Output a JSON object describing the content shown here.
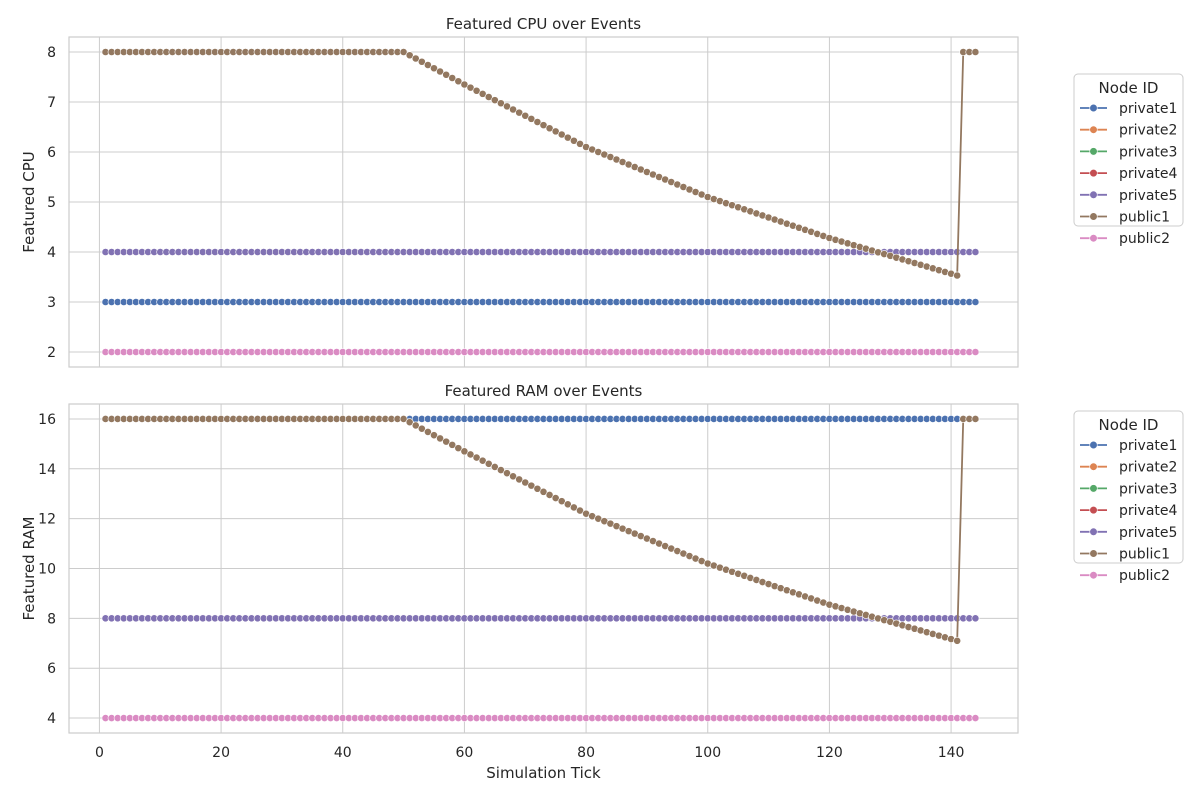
{
  "chart_data": [
    {
      "type": "line",
      "title": "Featured CPU over Events",
      "xlabel": "",
      "ylabel": "Featured CPU",
      "xlim": [
        -5,
        151
      ],
      "ylim": [
        1.7,
        8.3
      ],
      "xticks": [
        0,
        20,
        40,
        60,
        80,
        100,
        120,
        140
      ],
      "xtick_labels_visible": false,
      "yticks": [
        2,
        3,
        4,
        5,
        6,
        7,
        8
      ],
      "grid": true,
      "legend_title": "Node ID",
      "legend_position": "outside-right",
      "x_range": [
        1,
        144
      ],
      "series": [
        {
          "name": "private1",
          "color": "#4c72b0",
          "constant": 3
        },
        {
          "name": "private2",
          "color": "#dd8452",
          "constant": 4
        },
        {
          "name": "private3",
          "color": "#55a868",
          "constant": 4
        },
        {
          "name": "private4",
          "color": "#c44e52",
          "constant": 4
        },
        {
          "name": "private5",
          "color": "#8172b3",
          "constant": 4
        },
        {
          "name": "public1",
          "color": "#937860",
          "breakpoints": [
            [
              1,
              8
            ],
            [
              50,
              8
            ],
            [
              60,
              7.35
            ],
            [
              80,
              6.1
            ],
            [
              100,
              5.1
            ],
            [
              120,
              4.28
            ],
            [
              141,
              3.53
            ],
            [
              142,
              8
            ],
            [
              144,
              8
            ]
          ]
        },
        {
          "name": "public2",
          "color": "#da8bc3",
          "constant": 2
        }
      ]
    },
    {
      "type": "line",
      "title": "Featured RAM over Events",
      "xlabel": "Simulation Tick",
      "ylabel": "Featured RAM",
      "xlim": [
        -5,
        151
      ],
      "ylim": [
        3.4,
        16.6
      ],
      "xticks": [
        0,
        20,
        40,
        60,
        80,
        100,
        120,
        140
      ],
      "xtick_labels_visible": true,
      "yticks": [
        4,
        6,
        8,
        10,
        12,
        14,
        16
      ],
      "grid": true,
      "legend_title": "Node ID",
      "legend_position": "outside-right",
      "x_range": [
        1,
        144
      ],
      "series": [
        {
          "name": "private1",
          "color": "#4c72b0",
          "constant": 16
        },
        {
          "name": "private2",
          "color": "#dd8452",
          "constant": 8
        },
        {
          "name": "private3",
          "color": "#55a868",
          "constant": 8
        },
        {
          "name": "private4",
          "color": "#c44e52",
          "constant": 8
        },
        {
          "name": "private5",
          "color": "#8172b3",
          "constant": 8
        },
        {
          "name": "public1",
          "color": "#937860",
          "breakpoints": [
            [
              1,
              16
            ],
            [
              50,
              16
            ],
            [
              60,
              14.7
            ],
            [
              80,
              12.2
            ],
            [
              100,
              10.2
            ],
            [
              120,
              8.55
            ],
            [
              141,
              7.1
            ],
            [
              142,
              16
            ],
            [
              144,
              16
            ]
          ]
        },
        {
          "name": "public2",
          "color": "#da8bc3",
          "constant": 4
        }
      ]
    }
  ]
}
